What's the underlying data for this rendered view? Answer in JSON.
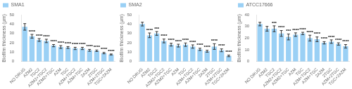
{
  "chart_data": [
    {
      "type": "bar",
      "legend": "upper left",
      "grid": false,
      "ylabel": "Biofilm thickness (μm)",
      "ylim": [
        0,
        50
      ],
      "yticks": [
        0,
        10,
        20,
        30,
        40,
        50
      ],
      "categories": [
        "NO DRUG",
        "AZM2",
        "TGC2",
        "AZM2+TGC2",
        "AZM2+TGC",
        "AZM",
        "TGC",
        "AZM+TGC2",
        "AZM+TGC",
        "2AZM",
        "2TGC",
        "AZM+2TGC",
        "TGC+2AZM"
      ],
      "series": [
        {
          "name": "SMA1",
          "values": [
            37,
            27,
            23,
            22,
            17,
            15.5,
            15,
            14,
            14,
            12,
            11.5,
            9,
            7.5
          ],
          "errors": [
            3.5,
            2.0,
            1.5,
            1.8,
            1.2,
            1.5,
            1.0,
            1.2,
            1.2,
            1.0,
            0.8,
            0.7,
            0.6
          ]
        }
      ],
      "annotations": [
        {
          "category": "AZM2",
          "text": "****"
        },
        {
          "category": "TGC2",
          "text": "****"
        },
        {
          "category": "AZM2+TGC2",
          "text": "****"
        },
        {
          "category": "AZM2+TGC",
          "text": "****"
        },
        {
          "category": "AZM",
          "text": "****"
        },
        {
          "category": "TGC",
          "text": "****"
        },
        {
          "category": "AZM+TGC2",
          "text": "****"
        },
        {
          "category": "AZM+TGC",
          "text": "****"
        },
        {
          "category": "2AZM",
          "text": "****"
        },
        {
          "category": "2TGC",
          "text": "****"
        },
        {
          "category": "AZM+2TGC",
          "text": "****"
        },
        {
          "category": "TGC+2AZM",
          "text": "****"
        }
      ]
    },
    {
      "type": "bar",
      "legend": "upper left",
      "grid": false,
      "ylabel": "Biofilm thickness (μm)",
      "ylim": [
        0,
        50
      ],
      "yticks": [
        0,
        10,
        20,
        30,
        40,
        50
      ],
      "categories": [
        "NO DRUG",
        "AZM2",
        "TGC2",
        "AZM2+TGC2",
        "AZM2+TGC",
        "AZM",
        "TGC",
        "AZM+TGC2",
        "AZM+TGC",
        "2AZM",
        "2TGC",
        "AZM+2TGC",
        "TGC+2AZM"
      ],
      "series": [
        {
          "name": "SMA2",
          "values": [
            40,
            28,
            30,
            22,
            18,
            17,
            18,
            16,
            13,
            11,
            16,
            12,
            6
          ],
          "errors": [
            2.0,
            2.5,
            2.0,
            2.0,
            1.5,
            1.5,
            1.8,
            1.8,
            1.2,
            1.0,
            3.0,
            1.5,
            0.8
          ]
        }
      ],
      "annotations": [
        {
          "category": "AZM2",
          "text": "****"
        },
        {
          "category": "TGC2",
          "text": "***"
        },
        {
          "category": "AZM2+TGC2",
          "text": "****"
        },
        {
          "category": "AZM2+TGC",
          "text": "****"
        },
        {
          "category": "AZM",
          "text": "****"
        },
        {
          "category": "TGC",
          "text": "****"
        },
        {
          "category": "AZM+TGC2",
          "text": "****"
        },
        {
          "category": "AZM+TGC",
          "text": "****"
        },
        {
          "category": "2AZM",
          "text": "****"
        },
        {
          "category": "2TGC",
          "text": "****"
        },
        {
          "category": "AZM+2TGC",
          "text": "****"
        },
        {
          "category": "TGC+2AZM",
          "text": "****"
        }
      ]
    },
    {
      "type": "bar",
      "legend": "upper left",
      "grid": false,
      "ylabel": "Biofilm thickness (μm)",
      "ylim": [
        0,
        40
      ],
      "yticks": [
        0,
        10,
        20,
        30,
        40
      ],
      "categories": [
        "NO DRUG",
        "AZM2",
        "TGC2",
        "AZM2+TGC2",
        "AZM2+TGC",
        "AZM",
        "TGC",
        "AZM+TGC2",
        "AZM+TGC",
        "2AZM",
        "2TGC",
        "AZM+2TGC",
        "TGC+2AZM"
      ],
      "series": [
        {
          "name": "ATCC17666",
          "values": [
            32,
            28,
            28,
            24,
            21,
            23,
            24,
            20,
            19,
            16,
            17,
            15,
            13
          ],
          "errors": [
            1.5,
            2.0,
            2.5,
            2.5,
            2.5,
            1.5,
            1.0,
            2.5,
            2.0,
            1.0,
            1.5,
            1.0,
            1.5
          ]
        }
      ],
      "annotations": [
        {
          "category": "TGC2",
          "text": "***"
        },
        {
          "category": "AZM2+TGC2",
          "text": "****"
        },
        {
          "category": "AZM2+TGC",
          "text": "***"
        },
        {
          "category": "AZM",
          "text": "****"
        },
        {
          "category": "TGC",
          "text": "****"
        },
        {
          "category": "AZM+TGC2",
          "text": "****"
        },
        {
          "category": "AZM+TGC",
          "text": "****"
        },
        {
          "category": "2AZM",
          "text": "****"
        },
        {
          "category": "2TGC",
          "text": "****"
        },
        {
          "category": "AZM+2TGC",
          "text": "****"
        },
        {
          "category": "TGC+2AZM",
          "text": "****"
        }
      ]
    }
  ]
}
